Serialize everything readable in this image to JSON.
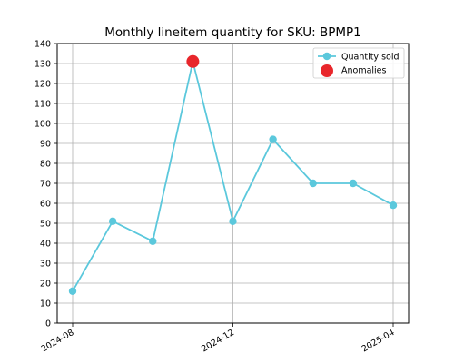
{
  "chart_data": {
    "type": "line",
    "title": "Monthly lineitem quantity for SKU: BPMP1",
    "xlabel": "",
    "ylabel": "",
    "x": [
      "2024-08",
      "2024-09",
      "2024-10",
      "2024-11",
      "2024-12",
      "2025-01",
      "2025-02",
      "2025-03",
      "2025-04"
    ],
    "x_ticks": [
      "2024-08",
      "2024-12",
      "2025-04"
    ],
    "ylim": [
      0,
      140
    ],
    "y_ticks": [
      0,
      10,
      20,
      30,
      40,
      50,
      60,
      70,
      80,
      90,
      100,
      110,
      120,
      130,
      140
    ],
    "grid": true,
    "legend_position": "top-right",
    "series": [
      {
        "name": "Quantity sold",
        "kind": "line",
        "color": "#5bc8dc",
        "values": [
          16,
          51,
          41,
          131,
          51,
          92,
          70,
          70,
          59
        ]
      },
      {
        "name": "Anomalies",
        "kind": "scatter",
        "color": "#e8262b",
        "points": [
          {
            "x": "2024-11",
            "y": 131
          }
        ]
      }
    ]
  }
}
